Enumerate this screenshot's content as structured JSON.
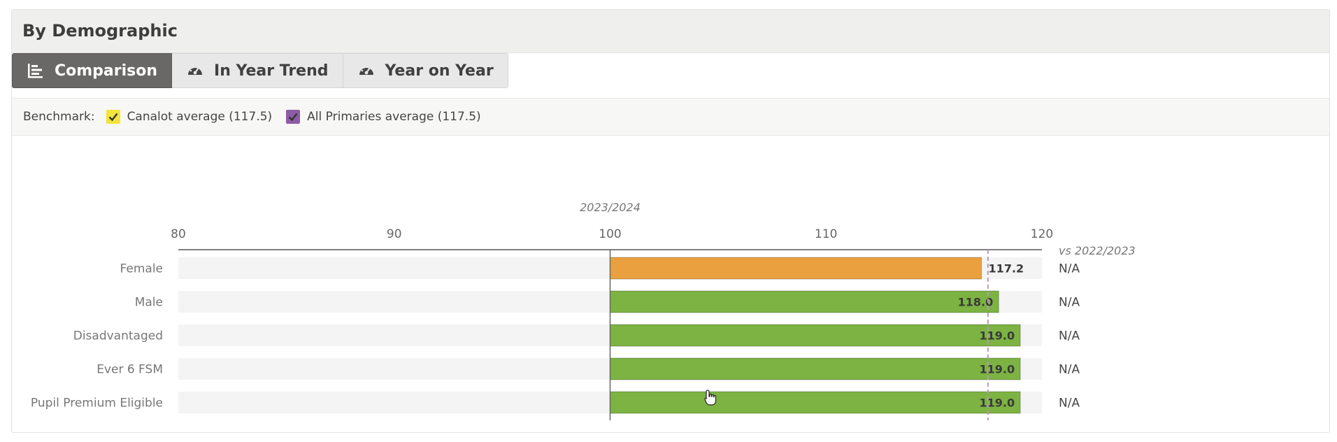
{
  "panel": {
    "title": "By Demographic"
  },
  "tabs": [
    {
      "label": "Comparison",
      "icon": "bar-chart-icon",
      "active": true
    },
    {
      "label": "In Year Trend",
      "icon": "gauge-icon",
      "active": false
    },
    {
      "label": "Year on Year",
      "icon": "gauge-icon",
      "active": false
    }
  ],
  "benchmark": {
    "label": "Benchmark:",
    "items": [
      {
        "label": "Canalot average (117.5)",
        "checked": true,
        "color": "#f2e43a"
      },
      {
        "label": "All Primaries average (117.5)",
        "checked": true,
        "color": "#8e5ba6"
      }
    ]
  },
  "chart_data": {
    "type": "bar",
    "orientation": "horizontal",
    "period": "2023/2024",
    "comparison_header": "vs 2022/2023",
    "xlim": [
      80,
      120
    ],
    "ticks": [
      80,
      90,
      100,
      110,
      120
    ],
    "baseline": 100,
    "benchmark_value": 117.5,
    "categories": [
      "Female",
      "Male",
      "Disadvantaged",
      "Ever 6 FSM",
      "Pupil Premium Eligible"
    ],
    "values": [
      117.2,
      118.0,
      119.0,
      119.0,
      119.0
    ],
    "value_labels": [
      "117.2",
      "118.0",
      "119.0",
      "119.0",
      "119.0"
    ],
    "comparison": [
      "N/A",
      "N/A",
      "N/A",
      "N/A",
      "N/A"
    ],
    "bar_colors": [
      "#eba03f",
      "#7cb342",
      "#7cb342",
      "#7cb342",
      "#7cb342"
    ],
    "track_color": "#f4f4f4",
    "benchmark_line_color": "#b69ab8"
  }
}
